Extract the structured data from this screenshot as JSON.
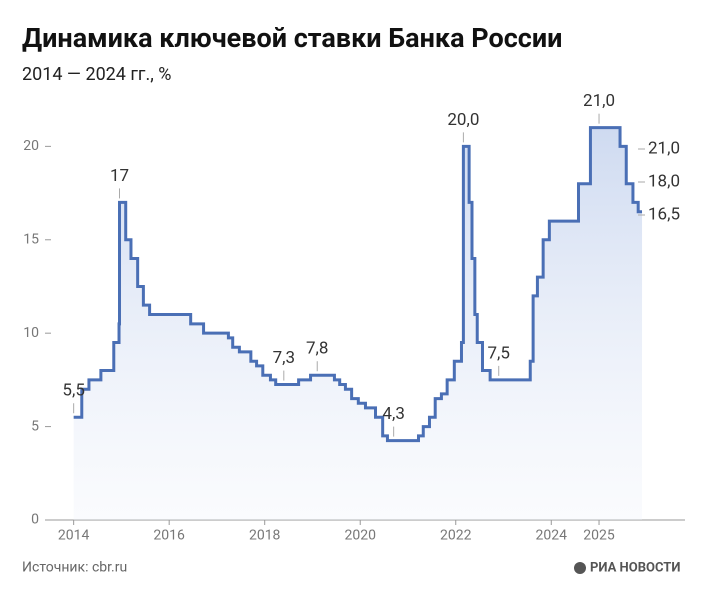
{
  "chart_data": {
    "type": "line",
    "step": "post",
    "title": "Динамика ключевой ставки Банка России",
    "subtitle": "2014 — 2024 гг., %",
    "source": "Источник: cbr.ru",
    "brand": "РИА НОВОСТИ",
    "xlim": [
      2013.4,
      2026.8
    ],
    "xticks": [
      2014,
      2016,
      2018,
      2020,
      2022,
      2024,
      2025
    ],
    "ylim": [
      0,
      22
    ],
    "yticks": [
      0,
      5,
      10,
      15,
      20
    ],
    "series": [
      {
        "name": "Ключевая ставка",
        "color": "#4a6fb5",
        "x": [
          2014.0,
          2014.17,
          2014.32,
          2014.57,
          2014.84,
          2014.95,
          2014.96,
          2015.09,
          2015.2,
          2015.34,
          2015.46,
          2015.59,
          2016.45,
          2016.72,
          2017.24,
          2017.33,
          2017.47,
          2017.71,
          2017.83,
          2017.96,
          2018.12,
          2018.23,
          2018.71,
          2018.96,
          2019.46,
          2019.57,
          2019.69,
          2019.82,
          2019.96,
          2020.11,
          2020.32,
          2020.47,
          2020.57,
          2021.22,
          2021.32,
          2021.45,
          2021.57,
          2021.7,
          2021.82,
          2021.97,
          2022.12,
          2022.16,
          2022.28,
          2022.34,
          2022.4,
          2022.45,
          2022.56,
          2022.72,
          2023.56,
          2023.62,
          2023.71,
          2023.83,
          2023.96,
          2024.57,
          2024.82,
          2025.44,
          2025.57,
          2025.71,
          2025.82,
          2025.9
        ],
        "values": [
          5.5,
          7,
          7.5,
          8,
          9.5,
          10.5,
          17,
          15,
          14,
          12.5,
          11.5,
          11,
          10.5,
          10,
          9.75,
          9.25,
          9,
          8.5,
          8.25,
          7.75,
          7.5,
          7.25,
          7.5,
          7.75,
          7.5,
          7.25,
          7,
          6.5,
          6.25,
          6,
          5.5,
          4.5,
          4.25,
          4.5,
          5,
          5.5,
          6.5,
          6.75,
          7.5,
          8.5,
          9.5,
          20,
          17,
          14,
          11,
          9.5,
          8,
          7.5,
          8.5,
          12,
          13,
          15,
          16,
          18,
          21,
          20,
          18,
          17,
          16.5,
          16.5
        ]
      }
    ],
    "annotations": [
      {
        "x": 2014.0,
        "value": 5.5,
        "label": "5,5"
      },
      {
        "x": 2014.96,
        "value": 17,
        "label": "17"
      },
      {
        "x": 2018.4,
        "value": 7.25,
        "label": "7,3"
      },
      {
        "x": 2019.1,
        "value": 7.75,
        "label": "7,8"
      },
      {
        "x": 2020.7,
        "value": 4.25,
        "label": "4,3"
      },
      {
        "x": 2022.16,
        "value": 20,
        "label": "20,0"
      },
      {
        "x": 2022.9,
        "value": 7.5,
        "label": "7,5"
      },
      {
        "x": 2025.0,
        "value": 21,
        "label": "21,0"
      }
    ],
    "right_labels": [
      {
        "value": 21,
        "label": "21,0"
      },
      {
        "value": 18,
        "label": "18,0"
      },
      {
        "value": 16.5,
        "label": "16,5"
      }
    ]
  }
}
